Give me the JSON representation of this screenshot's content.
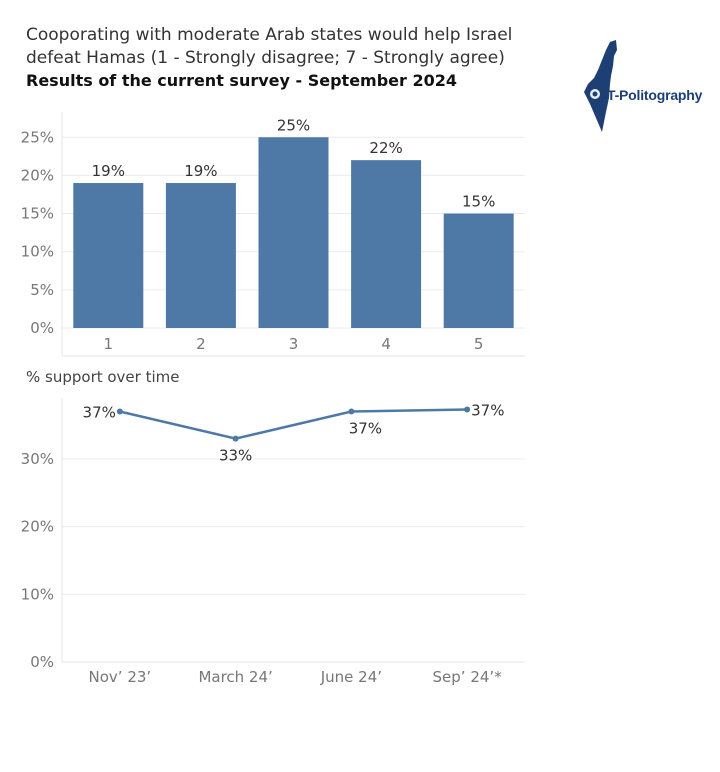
{
  "header": {
    "title": "Cooporating with moderate Arab states would help Israel defeat Hamas (1 - Strongly disagree; 7 - Strongly agree)",
    "subtitle": "Results of the current survey - September 2024"
  },
  "logo": {
    "text": "T-Politography",
    "icon": "israel-map-icon"
  },
  "colors": {
    "bar": "#4e79a7",
    "line": "#4e79a7",
    "grid": "#ececec",
    "axis_text": "#777777"
  },
  "chart_data": [
    {
      "type": "bar",
      "title": "",
      "categories": [
        "1",
        "2",
        "3",
        "4",
        "5"
      ],
      "values": [
        19,
        19,
        25,
        22,
        15
      ],
      "data_labels": [
        "19%",
        "19%",
        "25%",
        "22%",
        "15%"
      ],
      "ylim": [
        0,
        27
      ],
      "yticks": [
        0,
        5,
        10,
        15,
        20,
        25
      ],
      "ytick_labels": [
        "0%",
        "5%",
        "10%",
        "15%",
        "20%",
        "25%"
      ],
      "grid": true
    },
    {
      "type": "line",
      "title": "% support over time",
      "categories": [
        "Nov’ 23’",
        "March 24’",
        "June 24’",
        "Sep’ 24’*"
      ],
      "values": [
        37,
        33,
        37,
        37.3
      ],
      "data_labels": [
        "37%",
        "33%",
        "37%",
        "37%"
      ],
      "ylim": [
        0,
        39
      ],
      "yticks": [
        0,
        10,
        20,
        30
      ],
      "ytick_labels": [
        "0%",
        "10%",
        "20%",
        "30%"
      ],
      "grid": true
    }
  ]
}
